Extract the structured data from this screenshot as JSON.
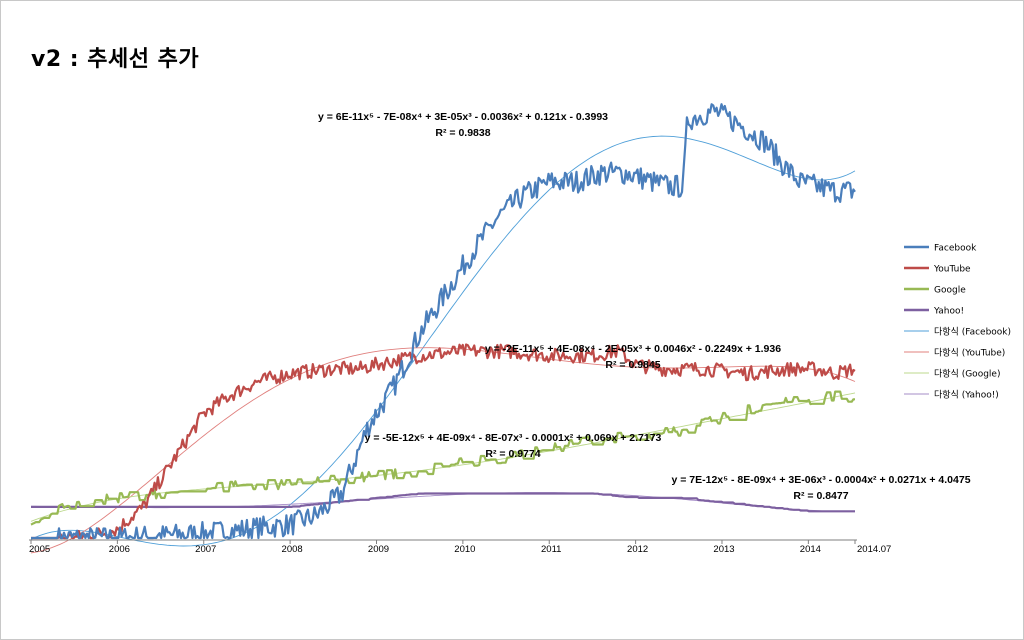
{
  "title": "v2 : 추세선 추가",
  "chart_data": {
    "type": "line",
    "x_start": 2005,
    "x_end": 2014.54,
    "xlim": [
      2005,
      2014.54
    ],
    "ylim": [
      0,
      100
    ],
    "xticks": [
      {
        "x": 2005,
        "label": "2005"
      },
      {
        "x": 2006,
        "label": "2006"
      },
      {
        "x": 2007,
        "label": "2007"
      },
      {
        "x": 2008,
        "label": "2008"
      },
      {
        "x": 2009,
        "label": "2009"
      },
      {
        "x": 2010,
        "label": "2010"
      },
      {
        "x": 2011,
        "label": "2011"
      },
      {
        "x": 2012,
        "label": "2012"
      },
      {
        "x": 2013,
        "label": "2013"
      },
      {
        "x": 2014,
        "label": "2014"
      },
      {
        "x": 2014.54,
        "label": "2014.07"
      }
    ],
    "series": [
      {
        "name": "Facebook",
        "color": "#4a7ebb",
        "points": [
          [
            2005,
            0
          ],
          [
            2006,
            0
          ],
          [
            2006.5,
            0.5
          ],
          [
            2007,
            1
          ],
          [
            2007.5,
            2
          ],
          [
            2008,
            3
          ],
          [
            2008.3,
            5
          ],
          [
            2008.6,
            10
          ],
          [
            2008.9,
            25
          ],
          [
            2009.2,
            34
          ],
          [
            2009.5,
            46
          ],
          [
            2009.8,
            55
          ],
          [
            2010.1,
            64
          ],
          [
            2010.4,
            72
          ],
          [
            2010.7,
            77
          ],
          [
            2011,
            80
          ],
          [
            2011.3,
            80
          ],
          [
            2011.6,
            82
          ],
          [
            2011.9,
            82
          ],
          [
            2012.2,
            80
          ],
          [
            2012.4,
            79
          ],
          [
            2012.55,
            79
          ],
          [
            2012.6,
            94
          ],
          [
            2012.9,
            96
          ],
          [
            2013.2,
            93
          ],
          [
            2013.5,
            89
          ],
          [
            2013.7,
            84
          ],
          [
            2013.9,
            80
          ],
          [
            2014.1,
            79
          ],
          [
            2014.3,
            78
          ],
          [
            2014.54,
            78
          ]
        ]
      },
      {
        "name": "YouTube",
        "color": "#be4b48",
        "points": [
          [
            2005,
            0
          ],
          [
            2005.5,
            0
          ],
          [
            2005.8,
            1
          ],
          [
            2006,
            2
          ],
          [
            2006.3,
            7
          ],
          [
            2006.6,
            16
          ],
          [
            2007,
            28
          ],
          [
            2007.3,
            32
          ],
          [
            2007.6,
            35
          ],
          [
            2008,
            37
          ],
          [
            2008.5,
            38
          ],
          [
            2008.8,
            38
          ],
          [
            2009,
            39
          ],
          [
            2009.5,
            41
          ],
          [
            2010,
            42
          ],
          [
            2010.5,
            42
          ],
          [
            2011,
            41
          ],
          [
            2011.5,
            41
          ],
          [
            2011.8,
            42
          ],
          [
            2012,
            39
          ],
          [
            2012.3,
            38
          ],
          [
            2012.8,
            38
          ],
          [
            2013.3,
            37
          ],
          [
            2013.8,
            38
          ],
          [
            2014.1,
            38
          ],
          [
            2014.3,
            37
          ],
          [
            2014.54,
            38
          ]
        ]
      },
      {
        "name": "Google",
        "color": "#98b954",
        "points": [
          [
            2005,
            3
          ],
          [
            2005.5,
            8
          ],
          [
            2006,
            9
          ],
          [
            2006.5,
            10
          ],
          [
            2007,
            11
          ],
          [
            2007.5,
            12
          ],
          [
            2008,
            12
          ],
          [
            2008.5,
            13
          ],
          [
            2009,
            14
          ],
          [
            2009.5,
            15
          ],
          [
            2010,
            17
          ],
          [
            2010.5,
            18
          ],
          [
            2011,
            20
          ],
          [
            2011.5,
            22
          ],
          [
            2012,
            23
          ],
          [
            2012.5,
            24
          ],
          [
            2013,
            27
          ],
          [
            2013.5,
            30
          ],
          [
            2014,
            31
          ],
          [
            2014.3,
            32
          ],
          [
            2014.54,
            30
          ]
        ]
      },
      {
        "name": "Yahoo!",
        "color": "#7d60a0",
        "points": [
          [
            2005,
            7
          ],
          [
            2006,
            7
          ],
          [
            2007,
            7
          ],
          [
            2007.5,
            7
          ],
          [
            2008,
            7
          ],
          [
            2008.5,
            8
          ],
          [
            2009,
            9
          ],
          [
            2009.5,
            10
          ],
          [
            2010,
            10
          ],
          [
            2010.5,
            10
          ],
          [
            2011,
            10
          ],
          [
            2011.5,
            10
          ],
          [
            2012,
            9
          ],
          [
            2012.5,
            9
          ],
          [
            2013,
            8
          ],
          [
            2013.5,
            7
          ],
          [
            2014,
            6
          ],
          [
            2014.3,
            6
          ],
          [
            2014.54,
            6
          ]
        ]
      }
    ],
    "trendlines": [
      {
        "name": "다항식 (Facebook)",
        "color": "#4f9fd8",
        "equation": "y = 6E-11x⁵ - 7E-08x⁴ + 3E-05x³ - 0.0036x² + 0.121x - 0.3993",
        "r2": "R² = 0.9838"
      },
      {
        "name": "다항식 (YouTube)",
        "color": "#e0807e",
        "equation": "y = -2E-11x⁵ + 4E-08x⁴ - 2E-05x³ + 0.0046x² - 0.2249x + 1.936",
        "r2": "R² = 0.9845"
      },
      {
        "name": "다항식 (Google)",
        "color": "#bcd88c",
        "equation": "y = -5E-12x⁵ + 4E-09x⁴ - 8E-07x³ - 0.0001x² + 0.069x + 2.7173",
        "r2": "R² = 0.9774"
      },
      {
        "name": "다항식 (Yahoo!)",
        "color": "#a58cc7",
        "equation": "y = 7E-12x⁵ - 8E-09x⁴ + 3E-06x³ - 0.0004x² + 0.0271x + 4.0475",
        "r2": "R² = 0.8477"
      }
    ],
    "legend_position": "right",
    "grid": false
  }
}
